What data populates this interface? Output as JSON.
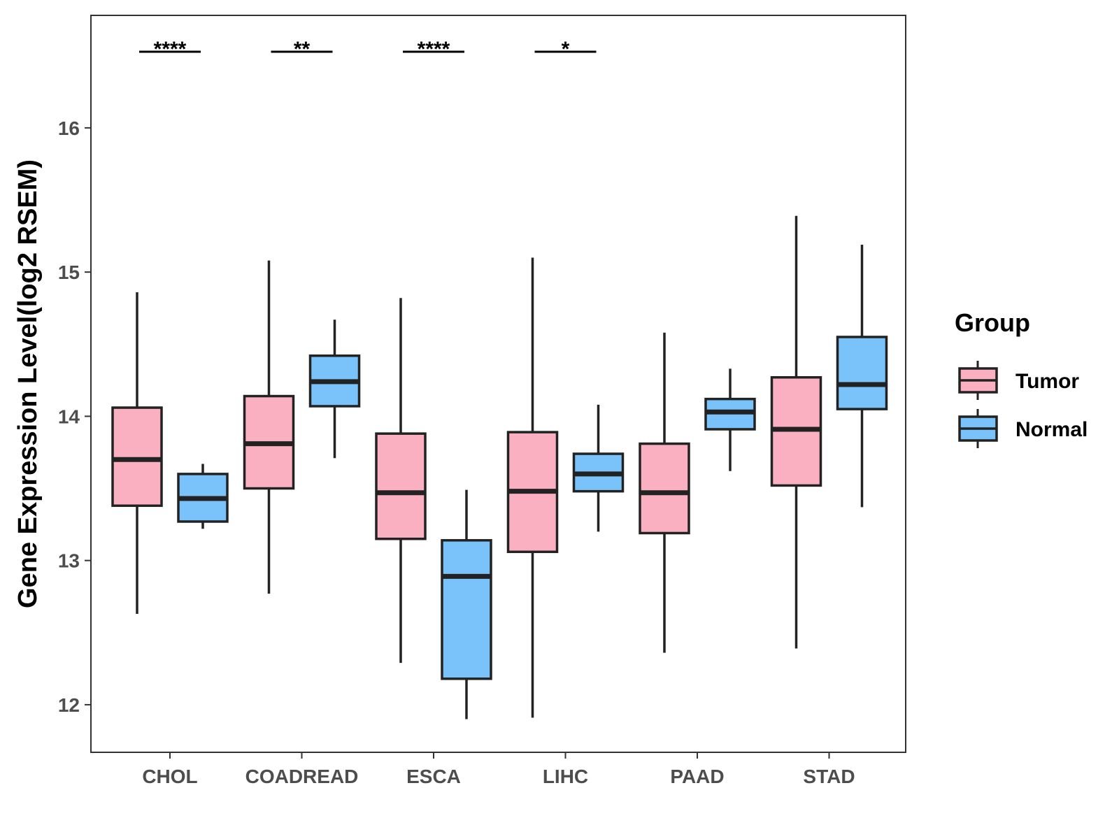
{
  "chart_data": {
    "type": "boxplot",
    "title": "",
    "xlabel": "",
    "ylabel": "Gene Expression Level(log2 RSEM)",
    "ylim": [
      11.67,
      16.78
    ],
    "yticks": [
      12,
      13,
      14,
      15,
      16
    ],
    "categories": [
      "CHOL",
      "COADREAD",
      "ESCA",
      "LIHC",
      "PAAD",
      "STAD"
    ],
    "series": [
      {
        "name": "Tumor",
        "color": "#fbb0c1",
        "boxes": [
          {
            "min": 12.63,
            "q1": 13.38,
            "median": 13.7,
            "q3": 14.06,
            "max": 14.86
          },
          {
            "min": 12.77,
            "q1": 13.5,
            "median": 13.81,
            "q3": 14.14,
            "max": 15.08
          },
          {
            "min": 12.29,
            "q1": 13.15,
            "median": 13.47,
            "q3": 13.88,
            "max": 14.82
          },
          {
            "min": 11.91,
            "q1": 13.06,
            "median": 13.48,
            "q3": 13.89,
            "max": 15.1
          },
          {
            "min": 12.36,
            "q1": 13.19,
            "median": 13.47,
            "q3": 13.81,
            "max": 14.58
          },
          {
            "min": 12.39,
            "q1": 13.52,
            "median": 13.91,
            "q3": 14.27,
            "max": 15.39
          }
        ]
      },
      {
        "name": "Normal",
        "color": "#7ac3fa",
        "boxes": [
          {
            "min": 13.22,
            "q1": 13.27,
            "median": 13.43,
            "q3": 13.6,
            "max": 13.67
          },
          {
            "min": 13.71,
            "q1": 14.07,
            "median": 14.24,
            "q3": 14.42,
            "max": 14.67
          },
          {
            "min": 11.9,
            "q1": 12.18,
            "median": 12.89,
            "q3": 13.14,
            "max": 13.49
          },
          {
            "min": 13.2,
            "q1": 13.48,
            "median": 13.6,
            "q3": 13.74,
            "max": 14.08
          },
          {
            "min": 13.62,
            "q1": 13.91,
            "median": 14.03,
            "q3": 14.12,
            "max": 14.33
          },
          {
            "min": 13.37,
            "q1": 14.05,
            "median": 14.22,
            "q3": 14.55,
            "max": 15.19
          }
        ]
      }
    ],
    "significance": [
      "****",
      "**",
      "****",
      "*",
      "",
      ""
    ],
    "legend": {
      "title": "Group",
      "position": "right"
    }
  }
}
